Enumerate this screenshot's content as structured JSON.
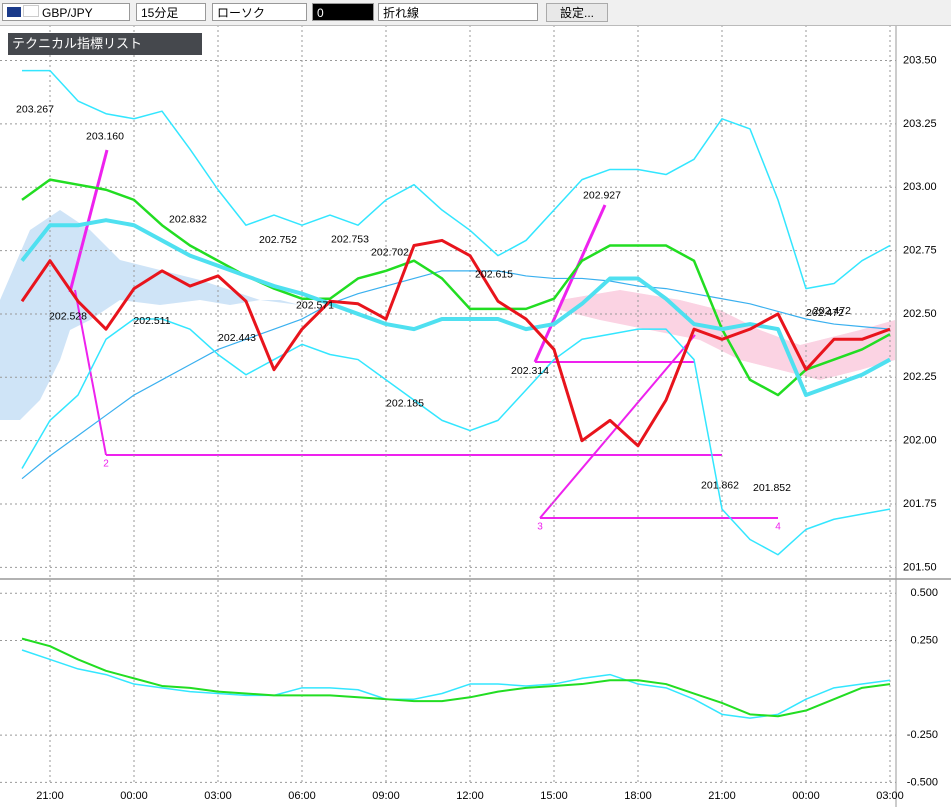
{
  "toolbar": {
    "pair": "GBP/JPY",
    "timeframe": "15分足",
    "style": "ローソク",
    "field": "0",
    "line_type": "折れ線",
    "settings": "設定...",
    "indicator_list": "テクニカル指標リスト"
  },
  "drawing_labels": [
    "2",
    "3",
    "4"
  ],
  "chart_data": [
    {
      "type": "line",
      "categories": [
        null,
        "21:00",
        null,
        null,
        "00:00",
        null,
        null,
        "03:00",
        null,
        null,
        "06:00",
        null,
        null,
        "09:00",
        null,
        null,
        "12:00",
        null,
        null,
        "15:00",
        null,
        null,
        "18:00",
        null,
        null,
        "21:00",
        null,
        null,
        "00:00",
        null,
        null,
        "03:00"
      ],
      "ylim": [
        201.47,
        203.64
      ],
      "yticks": [
        {
          "value": 201.5,
          "label": "201.50"
        },
        201.75,
        {
          "value": 202,
          "label": "202.00"
        },
        202.25,
        {
          "value": 202.5,
          "label": "202.50"
        },
        202.75,
        {
          "value": 203,
          "label": "203.00"
        },
        203.25,
        {
          "value": 203.5,
          "label": "203.50"
        }
      ],
      "grid": true,
      "series": [
        {
          "color": "#3ab0ef",
          "values": [
            201.85,
            201.94,
            202.02,
            202.1,
            202.18,
            202.24,
            202.3,
            202.36,
            202.4,
            202.44,
            202.48,
            202.54,
            202.58,
            202.61,
            202.64,
            202.67,
            202.67,
            202.67,
            202.65,
            202.64,
            202.64,
            202.63,
            202.61,
            202.6,
            202.58,
            202.56,
            202.54,
            202.51,
            202.48,
            202.46,
            202.45,
            202.44
          ]
        },
        {
          "color": "#33e6ff",
          "values": [
            203.46,
            203.46,
            203.34,
            203.29,
            203.27,
            203.3,
            203.15,
            202.99,
            202.85,
            202.89,
            202.85,
            202.89,
            202.85,
            202.95,
            203.01,
            202.91,
            202.83,
            202.73,
            202.79,
            202.91,
            203.03,
            203.07,
            203.07,
            203.05,
            203.11,
            203.27,
            203.23,
            202.95,
            202.6,
            202.62,
            202.71,
            202.77
          ]
        },
        {
          "color": "#33e6ff",
          "values": [
            201.89,
            202.08,
            202.18,
            202.4,
            202.48,
            202.48,
            202.44,
            202.34,
            202.26,
            202.32,
            202.38,
            202.34,
            202.32,
            202.24,
            202.16,
            202.08,
            202.04,
            202.08,
            202.2,
            202.32,
            202.4,
            202.42,
            202.44,
            202.44,
            202.32,
            201.73,
            201.61,
            201.55,
            201.65,
            201.69,
            201.71,
            201.73
          ]
        },
        {
          "color": "#22dd22",
          "values": [
            202.95,
            203.03,
            203.01,
            202.99,
            202.95,
            202.85,
            202.77,
            202.71,
            202.65,
            202.6,
            202.56,
            202.56,
            202.64,
            202.67,
            202.71,
            202.64,
            202.52,
            202.52,
            202.52,
            202.56,
            202.71,
            202.77,
            202.77,
            202.77,
            202.71,
            202.44,
            202.24,
            202.18,
            202.28,
            202.32,
            202.36,
            202.42
          ]
        },
        {
          "color": "#4fe0f0",
          "values": [
            202.71,
            202.85,
            202.85,
            202.87,
            202.85,
            202.79,
            202.73,
            202.69,
            202.65,
            202.61,
            202.58,
            202.54,
            202.5,
            202.46,
            202.44,
            202.48,
            202.48,
            202.48,
            202.44,
            202.46,
            202.54,
            202.64,
            202.64,
            202.56,
            202.46,
            202.44,
            202.46,
            202.44,
            202.18,
            202.22,
            202.26,
            202.32
          ]
        },
        {
          "color": "#e8141c",
          "values": [
            202.55,
            202.71,
            202.55,
            202.44,
            202.6,
            202.67,
            202.61,
            202.65,
            202.55,
            202.28,
            202.44,
            202.55,
            202.54,
            202.48,
            202.77,
            202.79,
            202.73,
            202.55,
            202.48,
            202.36,
            202.0,
            202.08,
            201.98,
            202.16,
            202.44,
            202.4,
            202.44,
            202.5,
            202.28,
            202.4,
            202.4,
            202.44
          ]
        }
      ],
      "annotations": [
        {
          "value": 203.267,
          "label": "203.267"
        },
        {
          "value": 203.16,
          "label": "203.160"
        },
        {
          "value": 202.832,
          "label": "202.832"
        },
        {
          "value": 202.528,
          "label": "202.528"
        },
        {
          "value": 202.511,
          "label": "202.511"
        },
        {
          "value": 202.443,
          "label": "202.443"
        },
        {
          "value": 202.752,
          "label": "202.752"
        },
        {
          "value": 202.753,
          "label": "202.753"
        },
        {
          "value": 202.571,
          "label": "202.571"
        },
        {
          "value": 202.702,
          "label": "202.702"
        },
        {
          "value": 202.615,
          "label": "202.615"
        },
        {
          "value": 202.185,
          "label": "202.185"
        },
        {
          "value": 202.314,
          "label": "202.314"
        },
        {
          "value": 202.927,
          "label": "202.927"
        },
        {
          "value": 201.862,
          "label": "201.862"
        },
        {
          "value": 201.852,
          "label": "201.852"
        },
        {
          "value": 202.472,
          "label": "202.472"
        },
        {
          "value": 202.472,
          "label": "202.472"
        }
      ]
    },
    {
      "type": "line",
      "ylim": [
        -0.54,
        0.57
      ],
      "yticks": [
        {
          "value": -0.5,
          "label": "-0.500"
        },
        {
          "value": -0.25,
          "label": "-0.250"
        },
        {
          "value": 0.25,
          "label": "0.250"
        },
        {
          "value": 0.5,
          "label": "0.500"
        }
      ],
      "grid": true,
      "series": [
        {
          "color": "#33e6ff",
          "values": [
            0.2,
            0.15,
            0.1,
            0.07,
            0.02,
            0,
            -0.02,
            -0.03,
            -0.04,
            -0.04,
            0,
            0,
            -0.01,
            -0.06,
            -0.06,
            -0.03,
            0.02,
            0.02,
            0.01,
            0.02,
            0.05,
            0.07,
            0.02,
            0,
            -0.06,
            -0.14,
            -0.16,
            -0.14,
            -0.06,
            0,
            0.02,
            0.04
          ]
        },
        {
          "color": "#22dd22",
          "values": [
            0.26,
            0.22,
            0.15,
            0.09,
            0.05,
            0.01,
            0,
            -0.02,
            -0.03,
            -0.04,
            -0.04,
            -0.04,
            -0.05,
            -0.06,
            -0.07,
            -0.07,
            -0.05,
            -0.02,
            0,
            0.01,
            0.02,
            0.04,
            0.04,
            0.02,
            -0.03,
            -0.08,
            -0.14,
            -0.15,
            -0.12,
            -0.06,
            0,
            0.02
          ]
        }
      ]
    }
  ]
}
